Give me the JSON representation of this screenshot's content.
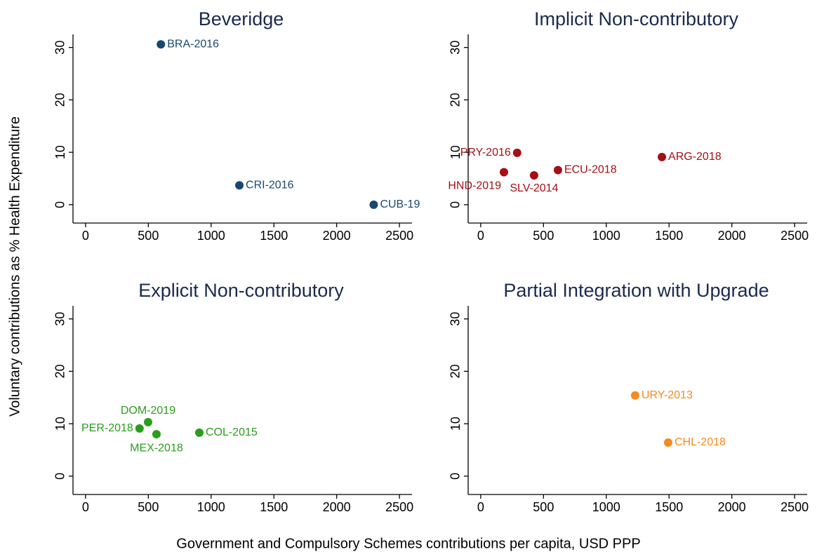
{
  "chart_data": [
    {
      "type": "scatter",
      "title": "Beveridge",
      "color": "#1a476f",
      "labels": [
        "BRA-2016",
        "CRI-2016",
        "CUB-19"
      ],
      "x": [
        600,
        1225,
        2295
      ],
      "values": [
        30.6,
        3.7,
        0
      ],
      "xlim": [
        -100,
        2600
      ],
      "ylim": [
        -3.5,
        32.5
      ],
      "xticks": [
        0,
        500,
        1000,
        1500,
        2000,
        2500
      ],
      "yticks": [
        0,
        10,
        20,
        30
      ]
    },
    {
      "type": "scatter",
      "title": "Implicit Non-contributory",
      "color": "#a50f15",
      "labels": [
        "PRY-2016",
        "HND-2019",
        "SLV-2014",
        "ECU-2018",
        "ARG-2018"
      ],
      "x": [
        290,
        185,
        425,
        615,
        1443
      ],
      "values": [
        9.9,
        6.2,
        5.6,
        6.6,
        9.1
      ],
      "xlim": [
        -100,
        2600
      ],
      "ylim": [
        -3.5,
        32.5
      ],
      "xticks": [
        0,
        500,
        1000,
        1500,
        2000,
        2500
      ],
      "yticks": [
        0,
        10,
        20,
        30
      ]
    },
    {
      "type": "scatter",
      "title": "Explicit Non-contributory",
      "color": "#2a9d1e",
      "labels": [
        "DOM-2019",
        "PER-2018",
        "MEX-2018",
        "COL-2015"
      ],
      "x": [
        498,
        430,
        565,
        906
      ],
      "values": [
        10.3,
        9.1,
        8.0,
        8.3
      ],
      "xlim": [
        -100,
        2600
      ],
      "ylim": [
        -3.5,
        32.5
      ],
      "xticks": [
        0,
        500,
        1000,
        1500,
        2000,
        2500
      ],
      "yticks": [
        0,
        10,
        20,
        30
      ]
    },
    {
      "type": "scatter",
      "title": "Partial Integration with Upgrade",
      "color": "#f58a1f",
      "labels": [
        "URY-2013",
        "CHL-2018"
      ],
      "x": [
        1230,
        1493
      ],
      "values": [
        15.4,
        6.4
      ],
      "xlim": [
        -100,
        2600
      ],
      "ylim": [
        -3.5,
        32.5
      ],
      "xticks": [
        0,
        500,
        1000,
        1500,
        2000,
        2500
      ],
      "yticks": [
        0,
        10,
        20,
        30
      ]
    }
  ],
  "xlabel": "Government and Compulsory Schemes contributions per capita, USD PPP",
  "ylabel": "Voluntary contributions as % Health Expenditure"
}
